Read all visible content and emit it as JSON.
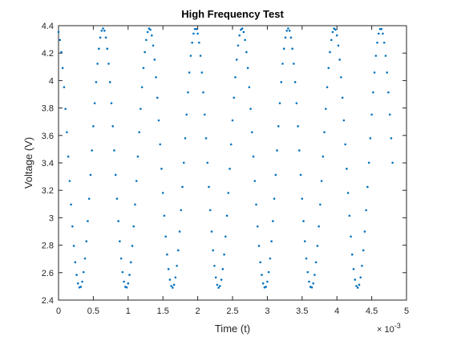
{
  "chart_data": {
    "type": "scatter",
    "title": "High Frequency Test",
    "xlabel": "Time (t)",
    "ylabel": "Voltage (V)",
    "x_exponent_base": "× 10",
    "x_exponent_power": "-3",
    "xlim": [
      0,
      5
    ],
    "ylim": [
      2.4,
      4.4
    ],
    "xticks": [
      "0",
      "0.5",
      "1",
      "1.5",
      "2",
      "2.5",
      "3",
      "3.5",
      "4",
      "4.5",
      "5"
    ],
    "yticks": [
      "2.4",
      "2.6",
      "2.8",
      "3",
      "3.2",
      "3.4",
      "3.6",
      "3.8",
      "4",
      "4.2",
      "4.4"
    ],
    "grid": false,
    "legend": "none",
    "marker_color": "#0072BD",
    "series": [
      {
        "signal": "sinusoid",
        "x_start": 0,
        "x_end": 4.8,
        "x_step": 0.02,
        "offset": 3.435,
        "amplitude": 0.945,
        "period": 0.665,
        "first_max_x": 0.64,
        "values_at_landmarks": [
          {
            "x": 0.0,
            "y": 4.33
          },
          {
            "x": 0.31,
            "y": 2.49
          },
          {
            "x": 0.64,
            "y": 4.38
          },
          {
            "x": 0.97,
            "y": 2.49
          },
          {
            "x": 1.31,
            "y": 4.38
          },
          {
            "x": 1.64,
            "y": 2.5
          },
          {
            "x": 1.97,
            "y": 4.39
          },
          {
            "x": 2.3,
            "y": 2.5
          },
          {
            "x": 2.64,
            "y": 4.38
          },
          {
            "x": 2.97,
            "y": 2.5
          },
          {
            "x": 3.3,
            "y": 4.38
          },
          {
            "x": 3.64,
            "y": 2.5
          },
          {
            "x": 3.97,
            "y": 4.39
          },
          {
            "x": 4.3,
            "y": 2.5
          },
          {
            "x": 4.64,
            "y": 4.39
          },
          {
            "x": 4.8,
            "y": 3.43
          }
        ]
      }
    ]
  }
}
